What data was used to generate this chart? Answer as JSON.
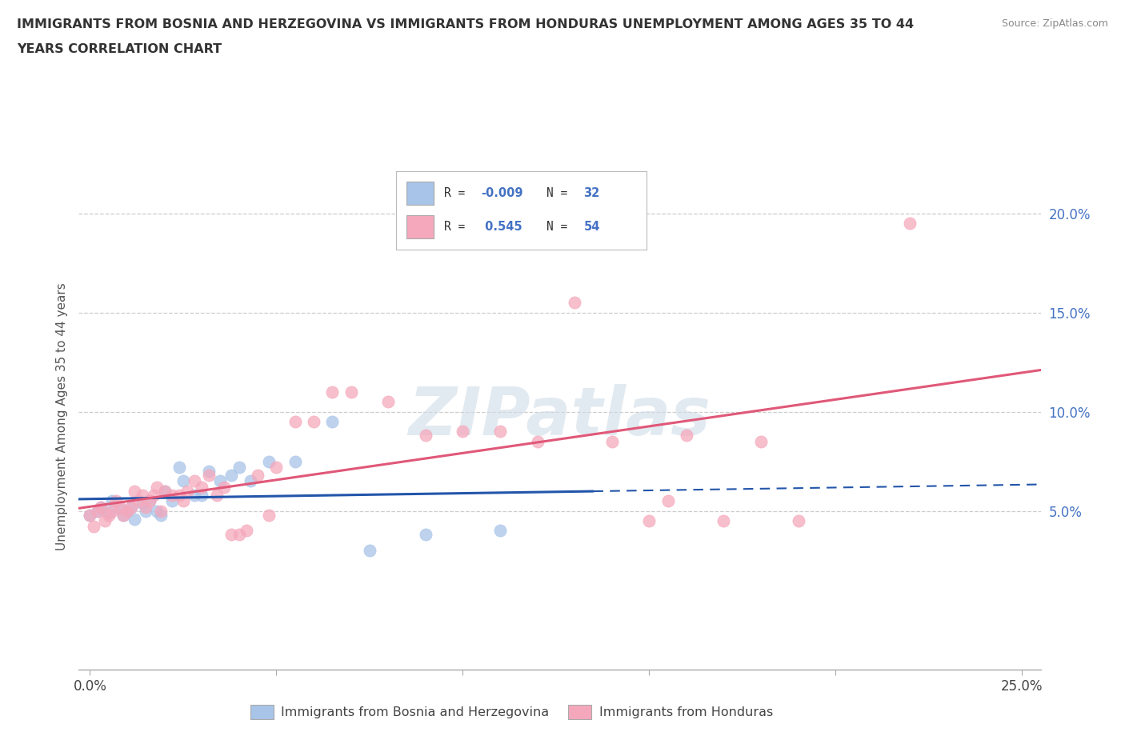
{
  "title_line1": "IMMIGRANTS FROM BOSNIA AND HERZEGOVINA VS IMMIGRANTS FROM HONDURAS UNEMPLOYMENT AMONG AGES 35 TO 44",
  "title_line2": "YEARS CORRELATION CHART",
  "source": "Source: ZipAtlas.com",
  "ylabel": "Unemployment Among Ages 35 to 44 years",
  "xlim": [
    -0.003,
    0.255
  ],
  "ylim": [
    -0.03,
    0.225
  ],
  "xtick_positions": [
    0.0,
    0.05,
    0.1,
    0.15,
    0.2,
    0.25
  ],
  "xticklabels": [
    "0.0%",
    "",
    "",
    "",
    "",
    "25.0%"
  ],
  "ytick_positions": [
    0.05,
    0.1,
    0.15,
    0.2
  ],
  "ytick_labels": [
    "5.0%",
    "10.0%",
    "15.0%",
    "20.0%"
  ],
  "bosnia_color": "#a8c4e8",
  "honduras_color": "#f5a8bc",
  "bosnia_line_color": "#2255aa",
  "honduras_line_color": "#e05878",
  "text_color_blue": "#4472c4",
  "r_bosnia_text": "-0.009",
  "n_bosnia_text": "32",
  "r_honduras_text": "0.545",
  "n_honduras_text": "54",
  "legend_label_bosnia": "Immigrants from Bosnia and Herzegovina",
  "legend_label_honduras": "Immigrants from Honduras",
  "grid_color": "#cccccc",
  "bg_color": "#ffffff",
  "bosnia_x": [
    0.0,
    0.002,
    0.003,
    0.005,
    0.006,
    0.008,
    0.009,
    0.01,
    0.011,
    0.012,
    0.014,
    0.015,
    0.016,
    0.018,
    0.019,
    0.02,
    0.022,
    0.024,
    0.025,
    0.028,
    0.03,
    0.032,
    0.035,
    0.038,
    0.04,
    0.043,
    0.048,
    0.055,
    0.065,
    0.075,
    0.09,
    0.11
  ],
  "bosnia_y": [
    0.048,
    0.05,
    0.052,
    0.049,
    0.055,
    0.051,
    0.048,
    0.05,
    0.052,
    0.046,
    0.054,
    0.05,
    0.055,
    0.05,
    0.048,
    0.06,
    0.055,
    0.072,
    0.065,
    0.058,
    0.058,
    0.07,
    0.065,
    0.068,
    0.072,
    0.065,
    0.075,
    0.075,
    0.095,
    0.03,
    0.038,
    0.04
  ],
  "honduras_x": [
    0.0,
    0.001,
    0.002,
    0.003,
    0.004,
    0.005,
    0.006,
    0.007,
    0.008,
    0.009,
    0.01,
    0.011,
    0.012,
    0.013,
    0.014,
    0.015,
    0.016,
    0.017,
    0.018,
    0.019,
    0.02,
    0.022,
    0.024,
    0.025,
    0.026,
    0.028,
    0.03,
    0.032,
    0.034,
    0.036,
    0.038,
    0.04,
    0.042,
    0.045,
    0.048,
    0.05,
    0.055,
    0.06,
    0.065,
    0.07,
    0.08,
    0.09,
    0.1,
    0.11,
    0.12,
    0.13,
    0.14,
    0.15,
    0.155,
    0.16,
    0.17,
    0.18,
    0.19,
    0.22
  ],
  "honduras_y": [
    0.048,
    0.042,
    0.05,
    0.052,
    0.045,
    0.048,
    0.05,
    0.055,
    0.052,
    0.048,
    0.05,
    0.052,
    0.06,
    0.055,
    0.058,
    0.052,
    0.055,
    0.058,
    0.062,
    0.05,
    0.06,
    0.058,
    0.058,
    0.055,
    0.06,
    0.065,
    0.062,
    0.068,
    0.058,
    0.062,
    0.038,
    0.038,
    0.04,
    0.068,
    0.048,
    0.072,
    0.095,
    0.095,
    0.11,
    0.11,
    0.105,
    0.088,
    0.09,
    0.09,
    0.085,
    0.155,
    0.085,
    0.045,
    0.055,
    0.088,
    0.045,
    0.085,
    0.045,
    0.195
  ]
}
